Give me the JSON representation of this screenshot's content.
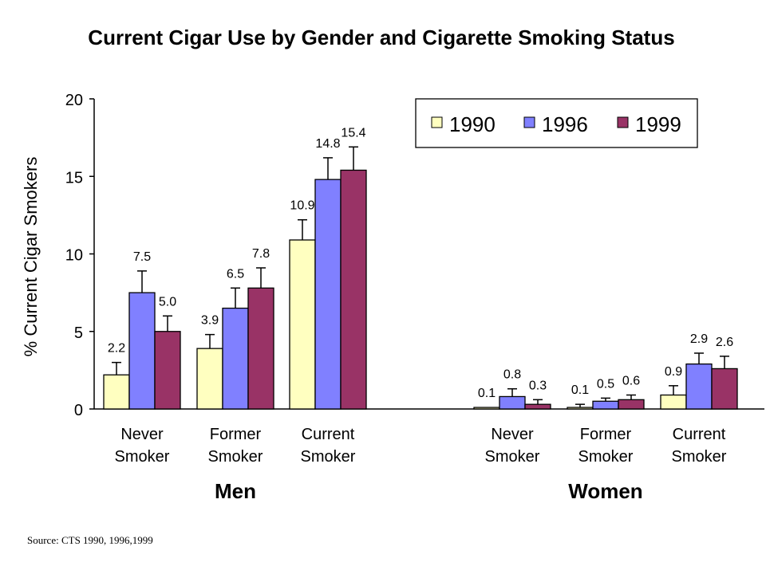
{
  "chart_data": {
    "type": "bar",
    "title": "Current Cigar Use by Gender and Cigarette Smoking Status",
    "ylabel": "% Current Cigar Smokers",
    "ylim": [
      0,
      20
    ],
    "yticks": [
      0,
      5,
      10,
      15,
      20
    ],
    "groups": [
      {
        "name": "Men",
        "categories": [
          {
            "label": [
              "Never",
              "Smoker"
            ],
            "values": [
              2.2,
              7.5,
              5.0
            ],
            "errors": [
              0.8,
              1.4,
              1.0
            ],
            "labels": [
              "2.2",
              "7.5",
              "5.0"
            ]
          },
          {
            "label": [
              "Former",
              "Smoker"
            ],
            "values": [
              3.9,
              6.5,
              7.8
            ],
            "errors": [
              0.9,
              1.3,
              1.3
            ],
            "labels": [
              "3.9",
              "6.5",
              "7.8"
            ]
          },
          {
            "label": [
              "Current",
              "Smoker"
            ],
            "values": [
              10.9,
              14.8,
              15.4
            ],
            "errors": [
              1.3,
              1.4,
              1.5
            ],
            "labels": [
              "10.9",
              "14.8",
              "15.4"
            ]
          }
        ]
      },
      {
        "name": "Women",
        "categories": [
          {
            "label": [
              "Never",
              "Smoker"
            ],
            "values": [
              0.1,
              0.8,
              0.3
            ],
            "errors": [
              0.0,
              0.5,
              0.3
            ],
            "labels": [
              "0.1",
              "0.8",
              "0.3"
            ]
          },
          {
            "label": [
              "Former",
              "Smoker"
            ],
            "values": [
              0.1,
              0.5,
              0.6
            ],
            "errors": [
              0.2,
              0.2,
              0.3
            ],
            "labels": [
              "0.1",
              "0.5",
              "0.6"
            ]
          },
          {
            "label": [
              "Current",
              "Smoker"
            ],
            "values": [
              0.9,
              2.9,
              2.6
            ],
            "errors": [
              0.6,
              0.7,
              0.8
            ],
            "labels": [
              "0.9",
              "2.9",
              "2.6"
            ]
          }
        ]
      }
    ],
    "series": [
      {
        "name": "1990",
        "color": "#FFFFC0"
      },
      {
        "name": "1996",
        "color": "#8080FF"
      },
      {
        "name": "1999",
        "color": "#993366"
      }
    ],
    "legend": "top-right",
    "grid": false
  },
  "source": "Source:  CTS 1990, 1996,1999"
}
